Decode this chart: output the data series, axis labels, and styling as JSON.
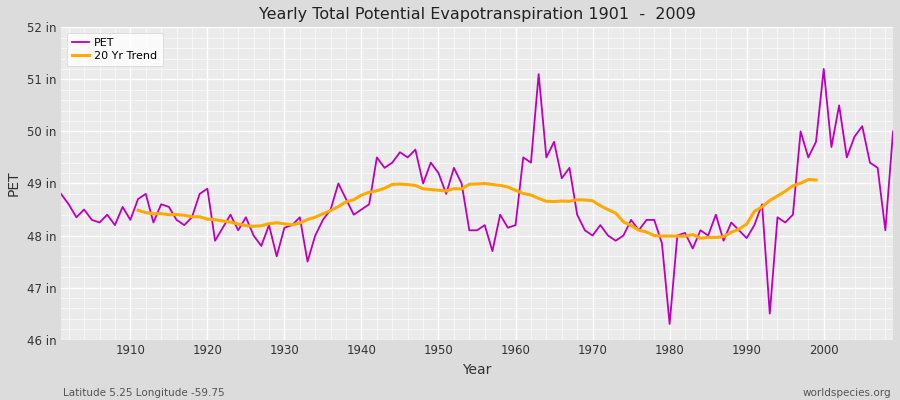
{
  "title": "Yearly Total Potential Evapotranspiration 1901  -  2009",
  "xlabel": "Year",
  "ylabel": "PET",
  "subtitle": "Latitude 5.25 Longitude -59.75",
  "watermark": "worldspecies.org",
  "pet_color": "#bb00bb",
  "trend_color": "#ffaa00",
  "background_color": "#dcdcdc",
  "plot_bg_color": "#ebebeb",
  "ylim": [
    46,
    52
  ],
  "years": [
    1901,
    1902,
    1903,
    1904,
    1905,
    1906,
    1907,
    1908,
    1909,
    1910,
    1911,
    1912,
    1913,
    1914,
    1915,
    1916,
    1917,
    1918,
    1919,
    1920,
    1921,
    1922,
    1923,
    1924,
    1925,
    1926,
    1927,
    1928,
    1929,
    1930,
    1931,
    1932,
    1933,
    1934,
    1935,
    1936,
    1937,
    1938,
    1939,
    1940,
    1941,
    1942,
    1943,
    1944,
    1945,
    1946,
    1947,
    1948,
    1949,
    1950,
    1951,
    1952,
    1953,
    1954,
    1955,
    1956,
    1957,
    1958,
    1959,
    1960,
    1961,
    1962,
    1963,
    1964,
    1965,
    1966,
    1967,
    1968,
    1969,
    1970,
    1971,
    1972,
    1973,
    1974,
    1975,
    1976,
    1977,
    1978,
    1979,
    1980,
    1981,
    1982,
    1983,
    1984,
    1985,
    1986,
    1987,
    1988,
    1989,
    1990,
    1991,
    1992,
    1993,
    1994,
    1995,
    1996,
    1997,
    1998,
    1999,
    2000,
    2001,
    2002,
    2003,
    2004,
    2005,
    2006,
    2007,
    2008,
    2009
  ],
  "pet_values": [
    48.8,
    48.6,
    48.35,
    48.5,
    48.3,
    48.25,
    48.4,
    48.2,
    48.55,
    48.3,
    48.7,
    48.8,
    48.25,
    48.6,
    48.55,
    48.3,
    48.2,
    48.35,
    48.8,
    48.9,
    47.9,
    48.15,
    48.4,
    48.1,
    48.35,
    48.0,
    47.8,
    48.2,
    47.6,
    48.15,
    48.2,
    48.35,
    47.5,
    48.0,
    48.3,
    48.5,
    49.0,
    48.7,
    48.4,
    48.5,
    48.6,
    49.5,
    49.3,
    49.4,
    49.6,
    49.5,
    49.65,
    49.0,
    49.4,
    49.2,
    48.8,
    49.3,
    49.0,
    48.1,
    48.1,
    48.2,
    47.7,
    48.4,
    48.15,
    48.2,
    49.5,
    49.4,
    51.1,
    49.5,
    49.8,
    49.1,
    49.3,
    48.4,
    48.1,
    48.0,
    48.2,
    48.0,
    47.9,
    48.0,
    48.3,
    48.1,
    48.3,
    48.3,
    47.85,
    46.3,
    48.0,
    48.05,
    47.75,
    48.1,
    48.0,
    48.4,
    47.9,
    48.25,
    48.1,
    47.95,
    48.2,
    48.6,
    46.5,
    48.35,
    48.25,
    48.4,
    50.0,
    49.5,
    49.8,
    51.2,
    49.7,
    50.5,
    49.5,
    49.9,
    50.1,
    49.4,
    49.3,
    48.1,
    50.0
  ]
}
